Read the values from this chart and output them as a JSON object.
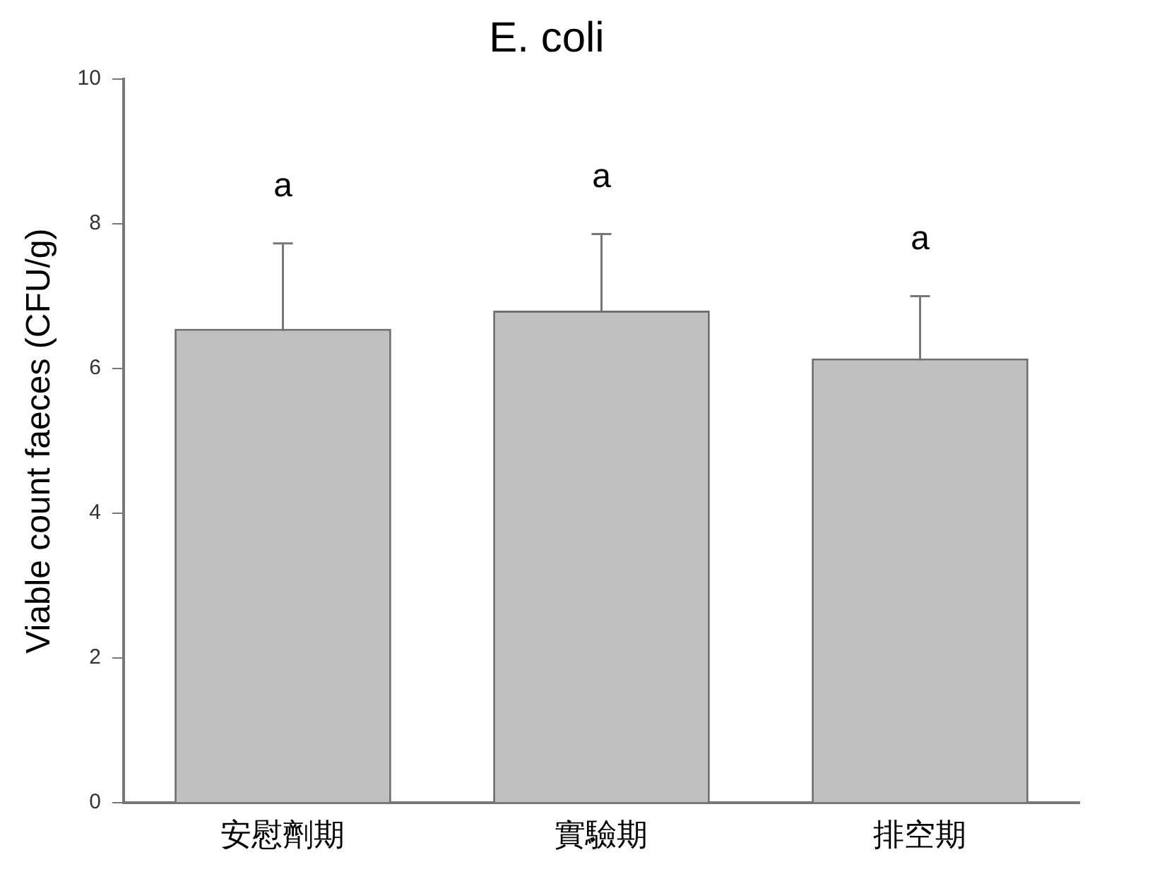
{
  "chart_data": {
    "type": "bar",
    "title": "E. coli",
    "ylabel": "Viable count faeces (CFU/g)",
    "categories": [
      "安慰劑期",
      "實驗期",
      "排空期"
    ],
    "values": [
      6.55,
      6.8,
      6.14
    ],
    "errors": [
      1.18,
      1.06,
      0.86
    ],
    "color": "#c0c0c0",
    "ylim": [
      0,
      10
    ],
    "yticks": [
      0,
      2,
      4,
      6,
      8,
      10
    ],
    "grid": false,
    "legend": false,
    "annotations": [
      "a",
      "a",
      "a"
    ]
  }
}
